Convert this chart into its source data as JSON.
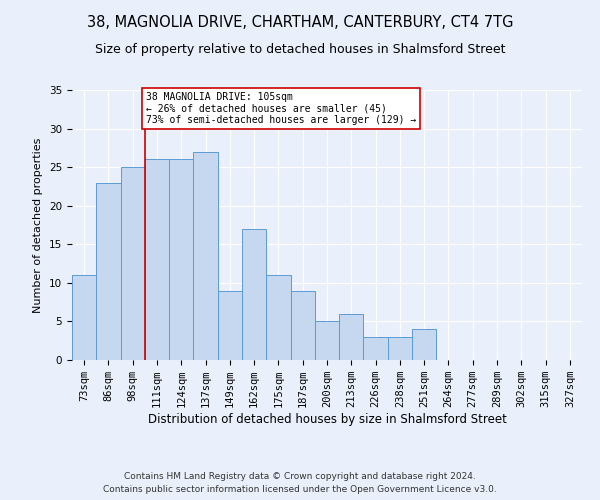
{
  "title1": "38, MAGNOLIA DRIVE, CHARTHAM, CANTERBURY, CT4 7TG",
  "title2": "Size of property relative to detached houses in Shalmsford Street",
  "xlabel": "Distribution of detached houses by size in Shalmsford Street",
  "ylabel": "Number of detached properties",
  "categories": [
    "73sqm",
    "86sqm",
    "98sqm",
    "111sqm",
    "124sqm",
    "137sqm",
    "149sqm",
    "162sqm",
    "175sqm",
    "187sqm",
    "200sqm",
    "213sqm",
    "226sqm",
    "238sqm",
    "251sqm",
    "264sqm",
    "277sqm",
    "289sqm",
    "302sqm",
    "315sqm",
    "327sqm"
  ],
  "values": [
    11,
    23,
    25,
    26,
    26,
    27,
    9,
    17,
    11,
    9,
    5,
    6,
    3,
    3,
    4,
    0,
    0,
    0,
    0,
    0,
    0
  ],
  "bar_color": "#c5d8f0",
  "bar_edge_color": "#5b9bd5",
  "ylim": [
    0,
    35
  ],
  "yticks": [
    0,
    5,
    10,
    15,
    20,
    25,
    30,
    35
  ],
  "redline_x": 2.5,
  "annotation_text": "38 MAGNOLIA DRIVE: 105sqm\n← 26% of detached houses are smaller (45)\n73% of semi-detached houses are larger (129) →",
  "annotation_box_color": "#ffffff",
  "annotation_box_edge": "#cc0000",
  "footer1": "Contains HM Land Registry data © Crown copyright and database right 2024.",
  "footer2": "Contains public sector information licensed under the Open Government Licence v3.0.",
  "background_color": "#eaf0fb",
  "grid_color": "#ffffff",
  "title1_fontsize": 10.5,
  "title2_fontsize": 9,
  "xlabel_fontsize": 8.5,
  "ylabel_fontsize": 8,
  "tick_fontsize": 7.5,
  "footer_fontsize": 6.5
}
